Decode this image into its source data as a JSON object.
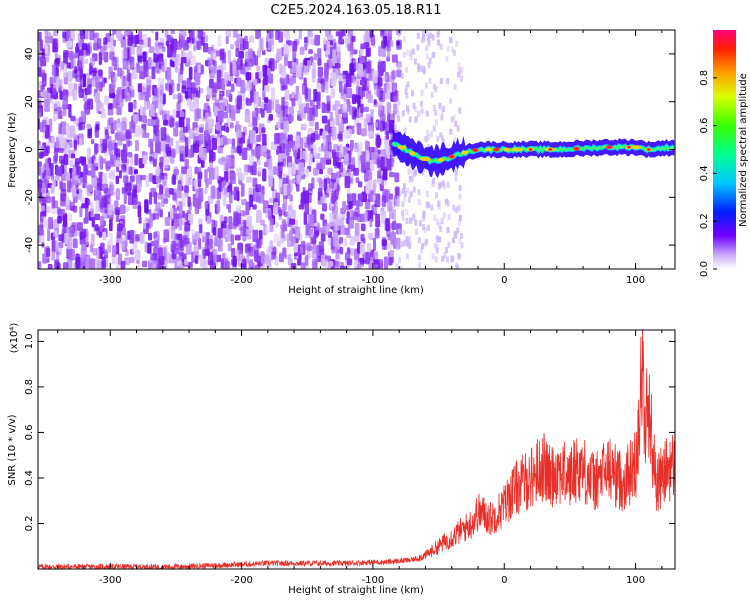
{
  "title": "C2E5.2024.163.05.18.R11",
  "chart_data": [
    {
      "type": "heatmap",
      "xlabel": "Height of straight line (km)",
      "ylabel": "Frequency (Hz)",
      "xlim": [
        -355,
        130
      ],
      "ylim": [
        -50,
        50
      ],
      "x_ticks": [
        -300,
        -200,
        -100,
        0,
        100
      ],
      "y_ticks": [
        -40,
        -20,
        0,
        20,
        40
      ],
      "colorbar": {
        "label": "Normalized spectral amplitude",
        "range": [
          0,
          1
        ],
        "ticks": [
          0.0,
          0.2,
          0.4,
          0.6,
          0.8
        ]
      },
      "description_points": {
        "noise_region_x": [
          -355,
          -80
        ],
        "signal_onset_x": -85,
        "signal_track": [
          {
            "x": -85,
            "y": 3
          },
          {
            "x": -75,
            "y": 0
          },
          {
            "x": -65,
            "y": -3
          },
          {
            "x": -55,
            "y": -5
          },
          {
            "x": -45,
            "y": -4
          },
          {
            "x": -35,
            "y": -2
          },
          {
            "x": -20,
            "y": 0
          },
          {
            "x": 0,
            "y": 0
          },
          {
            "x": 40,
            "y": 0
          },
          {
            "x": 80,
            "y": 1
          },
          {
            "x": 100,
            "y": 1
          },
          {
            "x": 110,
            "y": 0
          },
          {
            "x": 130,
            "y": 1
          }
        ]
      }
    },
    {
      "type": "line",
      "xlabel": "Height of straight line (km)",
      "ylabel": "SNR (10 * v/v)",
      "y_multiplier": "(x10⁴)",
      "xlim": [
        -355,
        130
      ],
      "ylim": [
        0,
        1.05
      ],
      "x_ticks": [
        -300,
        -200,
        -100,
        0,
        100
      ],
      "y_ticks": [
        0.2,
        0.4,
        0.6,
        0.8,
        1.0
      ],
      "color": "#e8302a",
      "series": [
        {
          "x": [
            -355,
            -300,
            -250,
            -200,
            -180,
            -160,
            -140,
            -120,
            -100,
            -90,
            -80,
            -70,
            -60,
            -50,
            -40,
            -30,
            -25,
            -20,
            -15,
            -10,
            -5,
            0,
            5,
            10,
            15,
            20,
            25,
            30,
            35,
            40,
            45,
            50,
            55,
            60,
            65,
            70,
            75,
            80,
            85,
            90,
            95,
            100,
            103,
            105,
            107,
            110,
            113,
            116,
            120,
            125,
            130
          ],
          "y": [
            0.01,
            0.01,
            0.01,
            0.02,
            0.025,
            0.025,
            0.025,
            0.025,
            0.03,
            0.03,
            0.035,
            0.04,
            0.06,
            0.1,
            0.14,
            0.18,
            0.2,
            0.25,
            0.24,
            0.22,
            0.25,
            0.28,
            0.33,
            0.36,
            0.38,
            0.4,
            0.43,
            0.45,
            0.4,
            0.44,
            0.42,
            0.4,
            0.45,
            0.44,
            0.4,
            0.38,
            0.42,
            0.44,
            0.41,
            0.38,
            0.42,
            0.46,
            0.7,
            0.9,
            0.6,
            0.75,
            0.5,
            0.38,
            0.4,
            0.45,
            0.45
          ]
        }
      ]
    }
  ]
}
